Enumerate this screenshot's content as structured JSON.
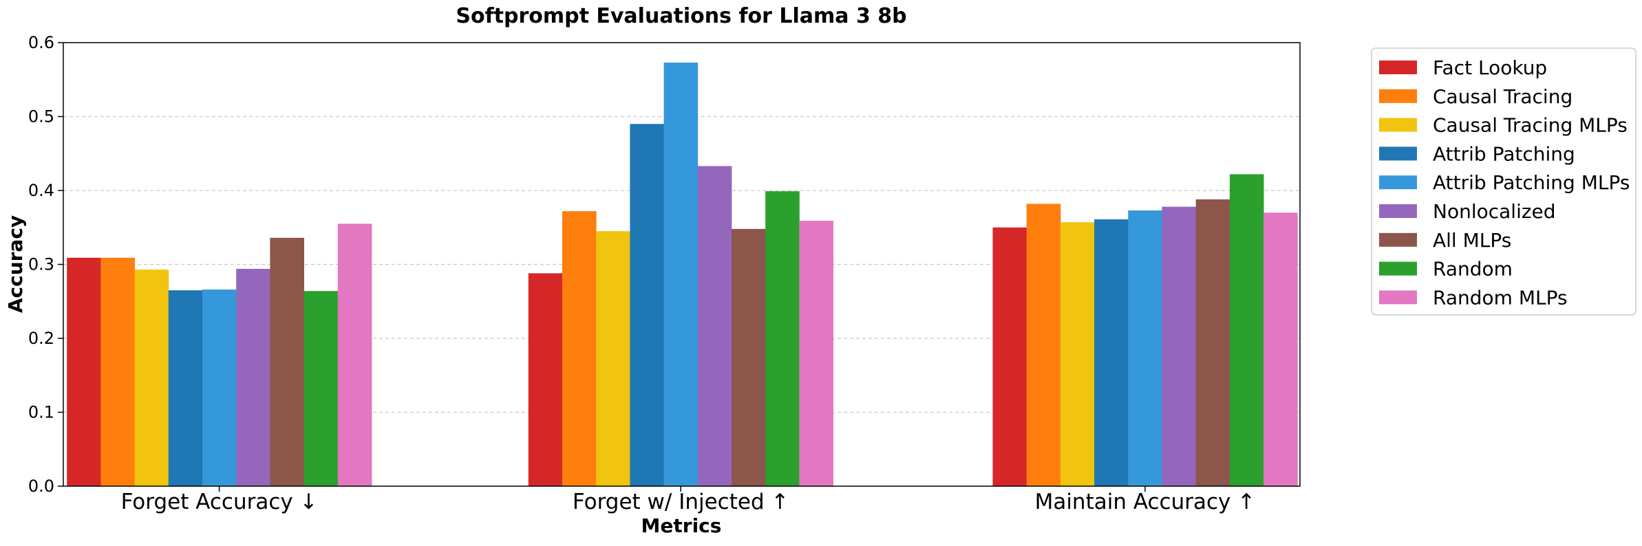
{
  "chart_data": {
    "type": "bar",
    "title": "Softprompt Evaluations for Llama 3 8b",
    "xlabel": "Metrics",
    "ylabel": "Accuracy",
    "ylim": [
      0,
      0.6
    ],
    "yticks": [
      "0.0",
      "0.1",
      "0.2",
      "0.3",
      "0.4",
      "0.5",
      "0.6"
    ],
    "grid": "y-dashed",
    "legend_position": "outside-right",
    "categories": [
      "Forget Accuracy ↓",
      "Forget w/ Injected ↑",
      "Maintain Accuracy ↑"
    ],
    "series": [
      {
        "name": "Fact Lookup",
        "color": "#d62728",
        "values": [
          0.309,
          0.288,
          0.35
        ]
      },
      {
        "name": "Causal Tracing",
        "color": "#ff7f0e",
        "values": [
          0.309,
          0.372,
          0.382
        ]
      },
      {
        "name": "Causal Tracing MLPs",
        "color": "#f1c40f",
        "values": [
          0.293,
          0.345,
          0.357
        ]
      },
      {
        "name": "Attrib Patching",
        "color": "#1f77b4",
        "values": [
          0.265,
          0.49,
          0.361
        ]
      },
      {
        "name": "Attrib Patching MLPs",
        "color": "#3498db",
        "values": [
          0.266,
          0.573,
          0.373
        ]
      },
      {
        "name": "Nonlocalized",
        "color": "#9467bd",
        "values": [
          0.294,
          0.433,
          0.378
        ]
      },
      {
        "name": "All MLPs",
        "color": "#8c564b",
        "values": [
          0.336,
          0.348,
          0.388
        ]
      },
      {
        "name": "Random",
        "color": "#2ca02c",
        "values": [
          0.264,
          0.399,
          0.422
        ]
      },
      {
        "name": "Random MLPs",
        "color": "#e377c2",
        "values": [
          0.355,
          0.359,
          0.37
        ]
      }
    ]
  }
}
